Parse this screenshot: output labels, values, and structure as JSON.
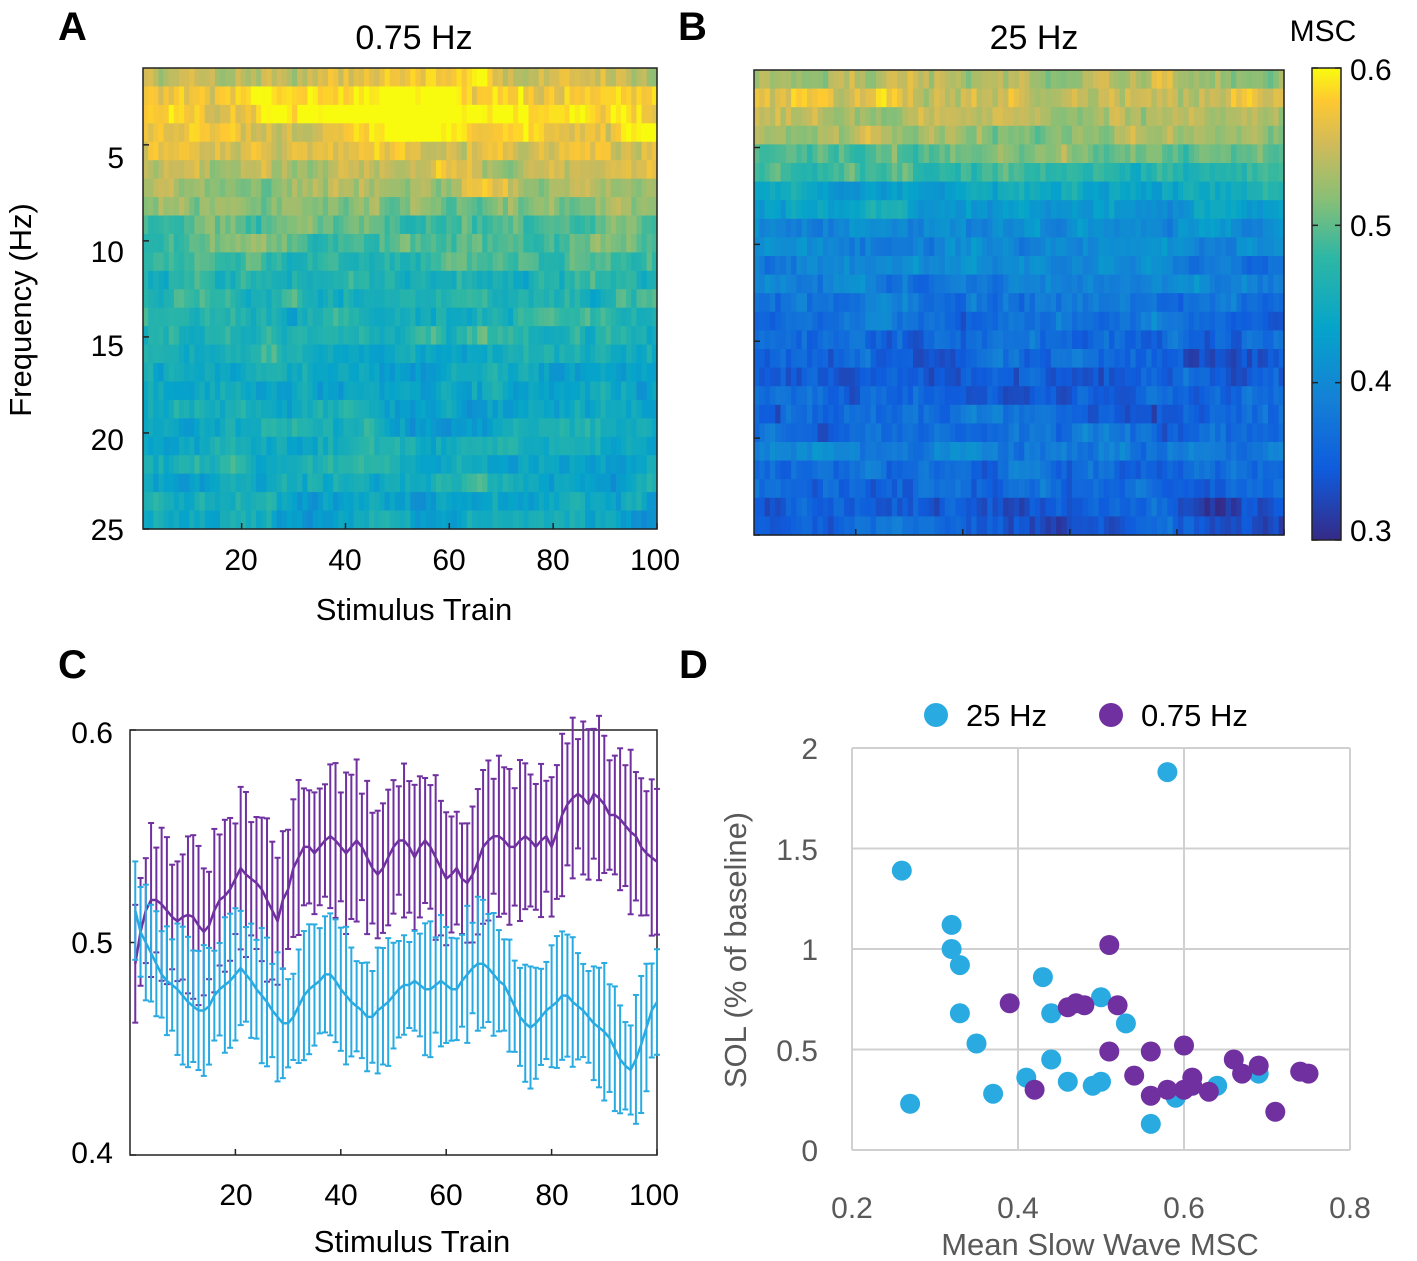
{
  "colors": {
    "cyan": "#29abe2",
    "purple": "#7030a0",
    "grid": "#d0d0d0"
  },
  "panels": {
    "a_label": "A",
    "b_label": "B",
    "c_label": "C",
    "d_label": "D"
  },
  "chart_data": [
    {
      "id": "A",
      "type": "heatmap",
      "title": "0.75 Hz",
      "xlabel": "Stimulus Train",
      "ylabel": "Frequency (Hz)",
      "xlim": [
        1,
        100
      ],
      "ylim": [
        1,
        25
      ],
      "xticks": [
        20,
        40,
        60,
        80,
        100
      ],
      "xtick_labels": [
        "20",
        "40",
        "60",
        "80",
        "100"
      ],
      "yticks": [
        5,
        10,
        15,
        20,
        25
      ],
      "ytick_labels": [
        "5",
        "10",
        "15",
        "20",
        "25"
      ],
      "row_profile_msc": [
        0.55,
        0.575,
        0.585,
        0.57,
        0.56,
        0.545,
        0.53,
        0.52,
        0.5,
        0.49,
        0.48,
        0.47,
        0.465,
        0.47,
        0.46,
        0.45,
        0.44,
        0.44,
        0.44,
        0.445,
        0.45,
        0.45,
        0.445,
        0.44,
        0.43
      ],
      "clim": [
        0.3,
        0.6
      ]
    },
    {
      "id": "B",
      "type": "heatmap",
      "title": "25 Hz",
      "colorbar_label": "MSC",
      "colorbar_ticks": [
        0.3,
        0.4,
        0.5,
        0.6
      ],
      "colorbar_tick_labels": [
        "0.3",
        "0.4",
        "0.5",
        "0.6"
      ],
      "xlim": [
        1,
        100
      ],
      "ylim": [
        1,
        25
      ],
      "row_profile_msc": [
        0.545,
        0.56,
        0.555,
        0.535,
        0.5,
        0.47,
        0.44,
        0.425,
        0.41,
        0.4,
        0.39,
        0.38,
        0.375,
        0.37,
        0.36,
        0.355,
        0.355,
        0.36,
        0.365,
        0.37,
        0.385,
        0.37,
        0.36,
        0.35,
        0.34
      ],
      "clim": [
        0.3,
        0.6
      ]
    },
    {
      "id": "C",
      "type": "line",
      "xlabel": "Stimulus Train",
      "ylabel": "",
      "xlim": [
        0,
        100
      ],
      "ylim": [
        0.4,
        0.6
      ],
      "xticks": [
        20,
        40,
        60,
        80,
        100
      ],
      "xtick_labels": [
        "20",
        "40",
        "60",
        "80",
        "100"
      ],
      "yticks": [
        0.4,
        0.5,
        0.6
      ],
      "ytick_labels": [
        "0.4",
        "0.5",
        "0.6"
      ],
      "series": [
        {
          "name": "0.75 Hz",
          "color": "purple",
          "error": 0.03,
          "values": [
            0.49,
            0.505,
            0.515,
            0.52,
            0.52,
            0.518,
            0.515,
            0.512,
            0.51,
            0.512,
            0.513,
            0.512,
            0.508,
            0.505,
            0.508,
            0.515,
            0.52,
            0.522,
            0.525,
            0.53,
            0.535,
            0.532,
            0.53,
            0.528,
            0.525,
            0.52,
            0.515,
            0.51,
            0.52,
            0.525,
            0.535,
            0.54,
            0.545,
            0.545,
            0.542,
            0.545,
            0.548,
            0.55,
            0.548,
            0.545,
            0.542,
            0.545,
            0.548,
            0.545,
            0.54,
            0.535,
            0.532,
            0.535,
            0.54,
            0.545,
            0.548,
            0.548,
            0.545,
            0.54,
            0.545,
            0.548,
            0.545,
            0.54,
            0.535,
            0.53,
            0.532,
            0.535,
            0.53,
            0.528,
            0.532,
            0.538,
            0.545,
            0.548,
            0.55,
            0.55,
            0.548,
            0.545,
            0.545,
            0.548,
            0.55,
            0.548,
            0.545,
            0.548,
            0.55,
            0.545,
            0.552,
            0.56,
            0.565,
            0.568,
            0.57,
            0.568,
            0.565,
            0.57,
            0.568,
            0.565,
            0.56,
            0.56,
            0.558,
            0.555,
            0.552,
            0.55,
            0.545,
            0.542,
            0.54,
            0.538
          ]
        },
        {
          "name": "25 Hz",
          "color": "cyan",
          "error": 0.025,
          "values": [
            0.515,
            0.505,
            0.5,
            0.495,
            0.49,
            0.485,
            0.482,
            0.48,
            0.478,
            0.475,
            0.472,
            0.47,
            0.468,
            0.468,
            0.47,
            0.475,
            0.478,
            0.48,
            0.482,
            0.485,
            0.488,
            0.485,
            0.482,
            0.478,
            0.475,
            0.472,
            0.468,
            0.465,
            0.462,
            0.462,
            0.465,
            0.47,
            0.475,
            0.478,
            0.48,
            0.482,
            0.485,
            0.485,
            0.482,
            0.478,
            0.475,
            0.472,
            0.47,
            0.468,
            0.465,
            0.465,
            0.468,
            0.47,
            0.472,
            0.475,
            0.478,
            0.48,
            0.48,
            0.482,
            0.48,
            0.478,
            0.478,
            0.48,
            0.482,
            0.48,
            0.478,
            0.478,
            0.482,
            0.485,
            0.488,
            0.49,
            0.49,
            0.488,
            0.485,
            0.482,
            0.48,
            0.475,
            0.47,
            0.465,
            0.462,
            0.46,
            0.462,
            0.465,
            0.468,
            0.47,
            0.472,
            0.475,
            0.475,
            0.472,
            0.47,
            0.468,
            0.465,
            0.462,
            0.46,
            0.458,
            0.455,
            0.45,
            0.445,
            0.442,
            0.44,
            0.445,
            0.452,
            0.46,
            0.468,
            0.472
          ]
        }
      ]
    },
    {
      "id": "D",
      "type": "scatter",
      "xlabel": "Mean Slow Wave MSC",
      "ylabel": "SOL (% of baseline)",
      "xlim": [
        0.2,
        0.8
      ],
      "ylim": [
        0,
        2
      ],
      "xticks": [
        0.2,
        0.4,
        0.6,
        0.8
      ],
      "xtick_labels": [
        "0.2",
        "0.4",
        "0.6",
        "0.8"
      ],
      "yticks": [
        0,
        0.5,
        1,
        1.5,
        2
      ],
      "ytick_labels": [
        "0",
        "0.5",
        "1",
        "1.5",
        "2"
      ],
      "grid": true,
      "legend": "top",
      "series": [
        {
          "name": "25 Hz",
          "color": "cyan",
          "points": [
            [
              0.26,
              1.39
            ],
            [
              0.27,
              0.23
            ],
            [
              0.32,
              1.12
            ],
            [
              0.32,
              1.0
            ],
            [
              0.33,
              0.92
            ],
            [
              0.33,
              0.68
            ],
            [
              0.35,
              0.53
            ],
            [
              0.37,
              0.28
            ],
            [
              0.41,
              0.36
            ],
            [
              0.43,
              0.86
            ],
            [
              0.44,
              0.68
            ],
            [
              0.44,
              0.45
            ],
            [
              0.46,
              0.34
            ],
            [
              0.49,
              0.32
            ],
            [
              0.5,
              0.34
            ],
            [
              0.5,
              0.76
            ],
            [
              0.53,
              0.63
            ],
            [
              0.56,
              0.13
            ],
            [
              0.58,
              1.88
            ],
            [
              0.59,
              0.26
            ],
            [
              0.64,
              0.32
            ],
            [
              0.69,
              0.38
            ]
          ]
        },
        {
          "name": "0.75 Hz",
          "color": "purple",
          "points": [
            [
              0.39,
              0.73
            ],
            [
              0.42,
              0.3
            ],
            [
              0.46,
              0.71
            ],
            [
              0.47,
              0.73
            ],
            [
              0.48,
              0.72
            ],
            [
              0.51,
              1.02
            ],
            [
              0.51,
              0.49
            ],
            [
              0.52,
              0.72
            ],
            [
              0.54,
              0.37
            ],
            [
              0.56,
              0.49
            ],
            [
              0.56,
              0.27
            ],
            [
              0.58,
              0.3
            ],
            [
              0.6,
              0.52
            ],
            [
              0.6,
              0.3
            ],
            [
              0.61,
              0.36
            ],
            [
              0.61,
              0.32
            ],
            [
              0.63,
              0.29
            ],
            [
              0.66,
              0.45
            ],
            [
              0.67,
              0.38
            ],
            [
              0.69,
              0.42
            ],
            [
              0.71,
              0.19
            ],
            [
              0.74,
              0.39
            ],
            [
              0.75,
              0.38
            ]
          ]
        }
      ]
    }
  ]
}
